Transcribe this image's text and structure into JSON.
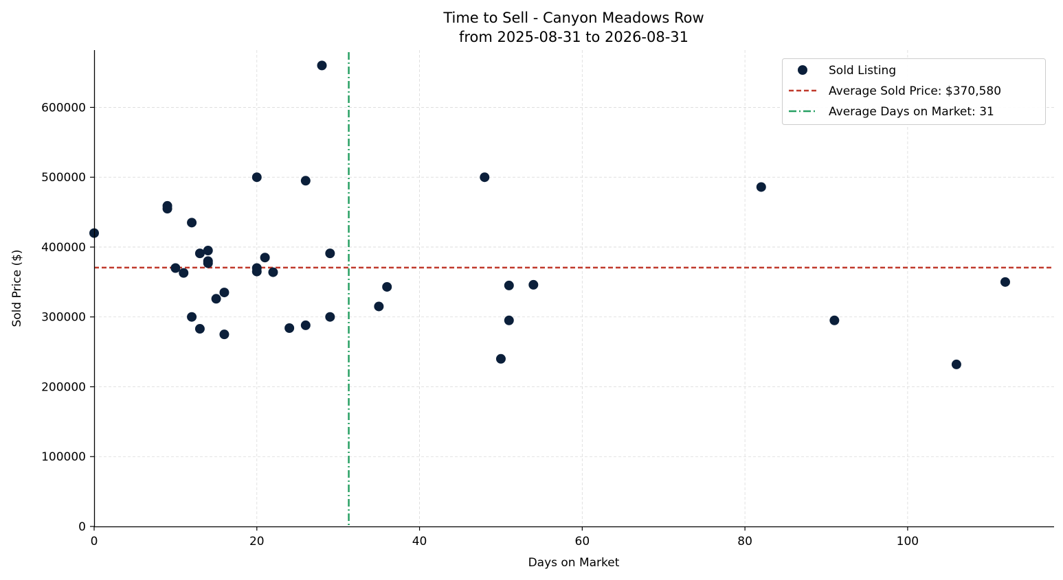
{
  "chart_data": {
    "type": "scatter",
    "title": "Time to Sell - Canyon Meadows Row",
    "subtitle": "from 2025-08-31 to 2026-08-31",
    "xlabel": "Days on Market",
    "ylabel": "Sold Price ($)",
    "xlim": [
      0,
      118
    ],
    "ylim": [
      0,
      682000
    ],
    "x_ticks": [
      0,
      20,
      40,
      60,
      80,
      100
    ],
    "y_ticks": [
      0,
      100000,
      200000,
      300000,
      400000,
      500000,
      600000
    ],
    "grid": true,
    "legend_position": "top-right",
    "colors": {
      "points": "#0b1f3a",
      "avg_price_line": "#c0392b",
      "avg_days_line": "#27a063",
      "grid": "#d9d9d9"
    },
    "series": [
      {
        "name": "Sold Listing",
        "points": [
          [
            0,
            420000
          ],
          [
            9,
            459000
          ],
          [
            9,
            455000
          ],
          [
            10,
            370000
          ],
          [
            11,
            363000
          ],
          [
            12,
            435000
          ],
          [
            12,
            300000
          ],
          [
            13,
            391000
          ],
          [
            13,
            283000
          ],
          [
            14,
            395000
          ],
          [
            14,
            380000
          ],
          [
            14,
            377000
          ],
          [
            15,
            326000
          ],
          [
            16,
            335000
          ],
          [
            16,
            275000
          ],
          [
            20,
            500000
          ],
          [
            20,
            370000
          ],
          [
            20,
            365000
          ],
          [
            21,
            385000
          ],
          [
            22,
            364000
          ],
          [
            24,
            284000
          ],
          [
            26,
            495000
          ],
          [
            26,
            288000
          ],
          [
            28,
            660000
          ],
          [
            29,
            391000
          ],
          [
            29,
            300000
          ],
          [
            35,
            315000
          ],
          [
            36,
            343000
          ],
          [
            48,
            500000
          ],
          [
            50,
            240000
          ],
          [
            51,
            345000
          ],
          [
            51,
            295000
          ],
          [
            54,
            346000
          ],
          [
            82,
            486000
          ],
          [
            91,
            295000
          ],
          [
            106,
            232000
          ],
          [
            112,
            350000
          ]
        ]
      }
    ],
    "reference_lines": {
      "avg_price": {
        "label": "Average Sold Price: $370,580",
        "value": 370580
      },
      "avg_days": {
        "label": "Average Days on Market: 31",
        "value": 31.3
      }
    }
  }
}
